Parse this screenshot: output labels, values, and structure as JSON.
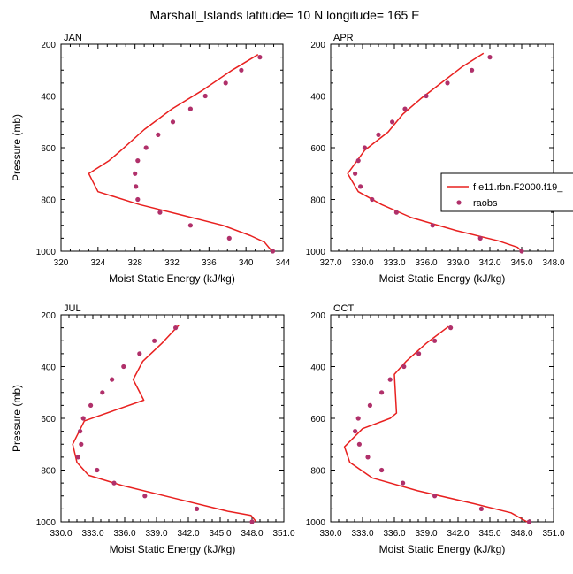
{
  "figure_title": "Marshall_Islands  latitude= 10 N longitude= 165 E",
  "legend": {
    "model_label": "f.e11.rbn.F2000.f19_",
    "obs_label": "raobs",
    "model_color": "#e8201f",
    "obs_color": "#b0306a"
  },
  "chart_data": [
    {
      "type": "line",
      "title": "JAN",
      "xlabel": "Moist Static Energy (kJ/kg)",
      "ylabel": "Pressure (mb)",
      "xlim": [
        320,
        344
      ],
      "ylim": [
        1000,
        200
      ],
      "xticks": [
        320,
        324,
        328,
        332,
        336,
        340,
        344
      ],
      "xtick_labels": [
        "320",
        "324",
        "328",
        "332",
        "336",
        "340",
        "344"
      ],
      "yticks": [
        200,
        400,
        600,
        800,
        1000
      ],
      "ytick_labels": [
        "200",
        "400",
        "600",
        "800",
        "1000"
      ],
      "series": [
        {
          "name": "f.e11.rbn.F2000.f19_",
          "style": "line",
          "x": [
            341.3,
            338.5,
            335.2,
            332.0,
            329.0,
            326.5,
            325.2,
            323.0,
            324.0,
            328.5,
            333.0,
            337.5,
            340.5,
            342.0,
            342.8
          ],
          "y": [
            240,
            300,
            380,
            450,
            530,
            610,
            650,
            700,
            770,
            820,
            860,
            900,
            940,
            965,
            1000
          ]
        },
        {
          "name": "raobs",
          "style": "scatter",
          "x": [
            341.5,
            339.5,
            337.8,
            335.6,
            334.0,
            332.1,
            330.5,
            329.2,
            328.3,
            328.0,
            328.1,
            328.3,
            330.7,
            334.0,
            338.2,
            342.9
          ],
          "y": [
            250,
            300,
            350,
            400,
            450,
            500,
            550,
            600,
            650,
            700,
            750,
            800,
            850,
            900,
            950,
            1000
          ]
        }
      ]
    },
    {
      "type": "line",
      "title": "APR",
      "xlabel": "Moist Static Energy (kJ/kg)",
      "ylabel": "",
      "xlim": [
        327,
        348
      ],
      "ylim": [
        1000,
        200
      ],
      "xticks": [
        327,
        330,
        333,
        336,
        339,
        342,
        345,
        348
      ],
      "xtick_labels": [
        "327.0",
        "330.0",
        "333.0",
        "336.0",
        "339.0",
        "342.0",
        "345.0",
        "348.0"
      ],
      "yticks": [
        200,
        400,
        600,
        800,
        1000
      ],
      "ytick_labels": [
        "200",
        "400",
        "600",
        "800",
        "1000"
      ],
      "series": [
        {
          "name": "f.e11.rbn.F2000.f19_",
          "style": "line",
          "x": [
            341.4,
            339.3,
            337.4,
            335.5,
            333.8,
            332.4,
            330.2,
            328.6,
            329.6,
            331.8,
            334.6,
            338.8,
            342.8,
            344.6,
            345.0
          ],
          "y": [
            235,
            290,
            350,
            410,
            470,
            540,
            610,
            700,
            770,
            820,
            870,
            920,
            960,
            985,
            1000
          ]
        },
        {
          "name": "raobs",
          "style": "scatter",
          "x": [
            342.0,
            340.3,
            338.0,
            336.0,
            334.0,
            332.8,
            331.5,
            330.2,
            329.6,
            329.3,
            329.8,
            330.9,
            333.2,
            336.6,
            341.1,
            345.0
          ],
          "y": [
            250,
            300,
            350,
            400,
            450,
            500,
            550,
            600,
            650,
            700,
            750,
            800,
            850,
            900,
            950,
            1000
          ]
        }
      ]
    },
    {
      "type": "line",
      "title": "JUL",
      "xlabel": "Moist Static Energy (kJ/kg)",
      "ylabel": "Pressure (mb)",
      "xlim": [
        330,
        351
      ],
      "ylim": [
        1000,
        200
      ],
      "xticks": [
        330,
        333,
        336,
        339,
        342,
        345,
        348,
        351
      ],
      "xtick_labels": [
        "330.0",
        "333.0",
        "336.0",
        "339.0",
        "342.0",
        "345.0",
        "348.0",
        "351.0"
      ],
      "yticks": [
        200,
        400,
        600,
        800,
        1000
      ],
      "ytick_labels": [
        "200",
        "400",
        "600",
        "800",
        "1000"
      ],
      "series": [
        {
          "name": "f.e11.rbn.F2000.f19_",
          "style": "line",
          "x": [
            341.1,
            339.5,
            337.7,
            336.8,
            337.8,
            335.0,
            332.2,
            331.1,
            331.5,
            332.6,
            335.8,
            340.8,
            345.8,
            347.9,
            348.4
          ],
          "y": [
            240,
            310,
            380,
            450,
            530,
            570,
            610,
            700,
            770,
            820,
            860,
            910,
            960,
            975,
            1000
          ]
        },
        {
          "name": "raobs",
          "style": "scatter",
          "x": [
            340.8,
            338.8,
            337.4,
            335.9,
            334.8,
            333.9,
            332.8,
            332.1,
            331.8,
            331.9,
            331.6,
            333.4,
            335.0,
            337.9,
            342.8,
            348.0
          ],
          "y": [
            250,
            300,
            350,
            400,
            450,
            500,
            550,
            600,
            650,
            700,
            750,
            800,
            850,
            900,
            950,
            1000
          ]
        }
      ]
    },
    {
      "type": "line",
      "title": "OCT",
      "xlabel": "Moist Static Energy (kJ/kg)",
      "ylabel": "",
      "xlim": [
        330,
        351
      ],
      "ylim": [
        1000,
        200
      ],
      "xticks": [
        330,
        333,
        336,
        339,
        342,
        345,
        348,
        351
      ],
      "xtick_labels": [
        "330.0",
        "333.0",
        "336.0",
        "339.0",
        "342.0",
        "345.0",
        "348.0",
        "351.0"
      ],
      "yticks": [
        200,
        400,
        600,
        800,
        1000
      ],
      "ytick_labels": [
        "200",
        "400",
        "600",
        "800",
        "1000"
      ],
      "series": [
        {
          "name": "f.e11.rbn.F2000.f19_",
          "style": "line",
          "x": [
            341.1,
            339.0,
            337.1,
            336.0,
            336.2,
            335.6,
            333.0,
            331.3,
            331.8,
            333.9,
            338.2,
            343.5,
            347.0,
            348.5
          ],
          "y": [
            245,
            310,
            380,
            430,
            580,
            600,
            640,
            710,
            770,
            830,
            880,
            930,
            965,
            1000
          ]
        },
        {
          "name": "raobs",
          "style": "scatter",
          "x": [
            341.3,
            339.8,
            338.3,
            336.9,
            335.6,
            334.8,
            333.7,
            332.6,
            332.3,
            332.7,
            333.5,
            334.8,
            336.8,
            339.8,
            344.2,
            348.7
          ],
          "y": [
            250,
            300,
            350,
            400,
            450,
            500,
            550,
            600,
            650,
            700,
            750,
            800,
            850,
            900,
            950,
            1000
          ]
        }
      ]
    }
  ]
}
